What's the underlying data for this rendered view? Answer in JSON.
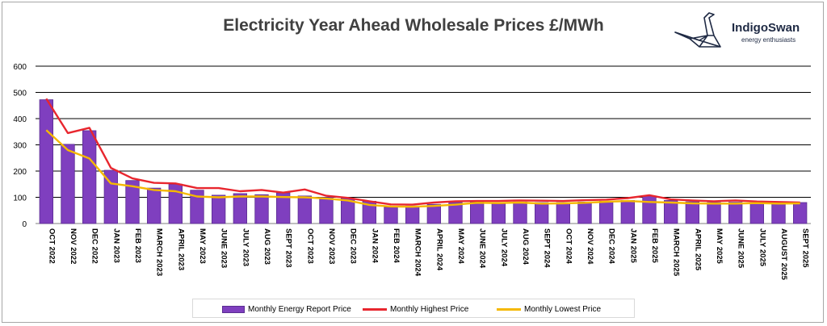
{
  "chart_data": {
    "type": "bar",
    "title": "Electricity Year Ahead Wholesale Prices £/MWh",
    "categories": [
      "OCT 2022",
      "NOV 2022",
      "DEC 2022",
      "JAN 2023",
      "FEB 2023",
      "MARCH 2023",
      "APRIL 2023",
      "MAY 2023",
      "JUNE 2023",
      "JULY 2023",
      "AUG 2023",
      "SEPT 2023",
      "OCT 2023",
      "NOV 2023",
      "DEC 2023",
      "JAN 2024",
      "FEB 2024",
      "MARCH 2024",
      "APRIL 2024",
      "MAY 2024",
      "JUNE 2024",
      "JULY 2024",
      "AUG 2024",
      "SEPT 2024",
      "OCT 2024",
      "NOV 2024",
      "DEC 2024",
      "JAN 2025",
      "FEB 2025",
      "MARCH 2025",
      "APRIL 2025",
      "MAY 2025",
      "JUNE 2025",
      "JULY 2025",
      "AUGUST 2025",
      "SEPT 2025"
    ],
    "series": [
      {
        "name": "Monthly Energy Report Price",
        "kind": "bar",
        "color": "#7f3fbf",
        "values": [
          472,
          302,
          354,
          203,
          164,
          135,
          150,
          127,
          108,
          114,
          110,
          117,
          105,
          100,
          96,
          85,
          62,
          67,
          73,
          80,
          82,
          80,
          82,
          80,
          80,
          82,
          85,
          88,
          105,
          88,
          83,
          80,
          81,
          79,
          78,
          80
        ]
      },
      {
        "name": "Monthly Highest Price",
        "kind": "line",
        "color": "#e8262e",
        "values": [
          476,
          345,
          365,
          212,
          172,
          155,
          153,
          135,
          135,
          123,
          128,
          118,
          130,
          106,
          98,
          85,
          73,
          72,
          80,
          85,
          86,
          86,
          88,
          87,
          86,
          89,
          91,
          97,
          108,
          92,
          88,
          85,
          88,
          84,
          82,
          80
        ]
      },
      {
        "name": "Monthly Lowest Price",
        "kind": "line",
        "color": "#f5b800",
        "values": [
          356,
          280,
          248,
          153,
          142,
          128,
          123,
          103,
          100,
          103,
          103,
          101,
          100,
          95,
          88,
          71,
          65,
          64,
          67,
          72,
          79,
          78,
          80,
          76,
          77,
          79,
          83,
          86,
          82,
          80,
          77,
          76,
          76,
          78,
          76,
          77
        ]
      }
    ],
    "ylim": [
      0,
      600
    ],
    "yticks": [
      0,
      100,
      200,
      300,
      400,
      500,
      600
    ],
    "grid": true,
    "legend_position": "bottom"
  },
  "logo": {
    "name": "IndigoSwan",
    "tagline": "energy enthusiasts"
  }
}
